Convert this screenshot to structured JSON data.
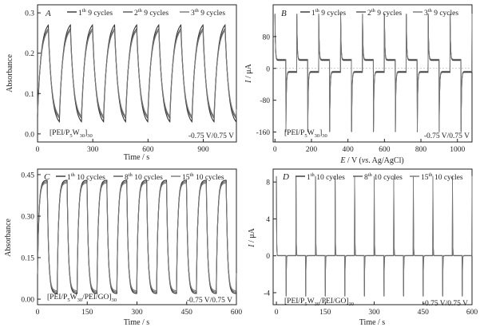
{
  "chart_data": [
    {
      "panel": "A",
      "type": "line",
      "xlabel": "Time / s",
      "ylabel": "Absorbance",
      "xlim": [
        0,
        1080
      ],
      "ylim": [
        -0.02,
        0.32
      ],
      "xticks": [
        0,
        300,
        600,
        900
      ],
      "yticks": [
        0.0,
        0.1,
        0.2,
        0.3
      ],
      "xtick_labels": [
        "0",
        "300",
        "600",
        "900"
      ],
      "ytick_labels": [
        "0.0",
        "0.1",
        "0.2",
        "0.3"
      ],
      "legend": [
        "1th 9 cycles",
        "2th 9 cycles",
        "3th 9 cycles"
      ],
      "legend_position": "top-right",
      "film": "[PEI/P5W30]30",
      "annotation": "-0.75 V/0.75 V",
      "half_period_s": 60,
      "cycles": 9,
      "series": [
        {
          "name": "1th 9 cycles",
          "low": 0.02,
          "high": 0.28
        },
        {
          "name": "2th 9 cycles",
          "low": 0.03,
          "high": 0.27
        },
        {
          "name": "3th 9 cycles",
          "low": 0.035,
          "high": 0.265
        }
      ]
    },
    {
      "panel": "B",
      "type": "line",
      "xlabel": "E / V (vs. Ag/AgCl)",
      "ylabel": "I / μA",
      "xlim": [
        -10,
        1080
      ],
      "ylim": [
        -185,
        160
      ],
      "xticks": [
        0,
        200,
        400,
        600,
        800,
        1000
      ],
      "yticks": [
        -160,
        -80,
        0,
        80
      ],
      "xtick_labels": [
        "0",
        "200",
        "400",
        "600",
        "800",
        "1000"
      ],
      "ytick_labels": [
        "-160",
        "-80",
        "0",
        "80"
      ],
      "legend": [
        "1th 9 cycles",
        "2th 9 cycles",
        "3th 9 cycles"
      ],
      "legend_position": "top-right",
      "film": "[PEI/P5W30]30",
      "annotation": "-0.75 V/0.75 V",
      "half_period_s": 60,
      "cycles": 9,
      "pos_peak": 135,
      "pos_plateau": 20,
      "neg_peak": -160,
      "neg_plateau": -10
    },
    {
      "panel": "C",
      "type": "line",
      "xlabel": "Time / s",
      "ylabel": "Absorbance",
      "xlim": [
        0,
        600
      ],
      "ylim": [
        -0.02,
        0.47
      ],
      "xticks": [
        0,
        150,
        300,
        450,
        600
      ],
      "yticks": [
        0.0,
        0.15,
        0.3,
        0.45
      ],
      "xtick_labels": [
        "0",
        "150",
        "300",
        "450",
        "600"
      ],
      "ytick_labels": [
        "0.00",
        "0.15",
        "0.30",
        "0.45"
      ],
      "legend": [
        "1th 10 cycles",
        "8th 10 cycles",
        "15th 10 cycles"
      ],
      "legend_position": "top-right",
      "film": "[PEI/P5W30/PEI/GO]30",
      "annotation": "-0.75 V/0.75 V",
      "half_period_s": 30,
      "cycles": 10,
      "series": [
        {
          "name": "1th 10 cycles",
          "low": 0.02,
          "high": 0.43
        },
        {
          "name": "8th 10 cycles",
          "low": 0.025,
          "high": 0.425
        },
        {
          "name": "15th 10 cycles",
          "low": 0.03,
          "high": 0.42
        }
      ]
    },
    {
      "panel": "D",
      "type": "line",
      "xlabel": "Time / s",
      "ylabel": "I / μA",
      "xlim": [
        -10,
        600
      ],
      "ylim": [
        -5.3,
        9.4
      ],
      "xticks": [
        0,
        150,
        300,
        450,
        600
      ],
      "yticks": [
        -4,
        0,
        4,
        8
      ],
      "xtick_labels": [
        "0",
        "150",
        "300",
        "450",
        "600"
      ],
      "ytick_labels": [
        "-4",
        "0",
        "4",
        "8"
      ],
      "legend": [
        "1th 10 cycles",
        "8th 10 cycles",
        "15th 10 cycles"
      ],
      "legend_position": "top-right",
      "film": "[PEI/P5W30/PEI/GO]30",
      "annotation": "-0.75 V/0.75 V",
      "half_period_s": 30,
      "cycles": 10,
      "pos_peak": 8.6,
      "neg_peak": -4.4
    }
  ]
}
